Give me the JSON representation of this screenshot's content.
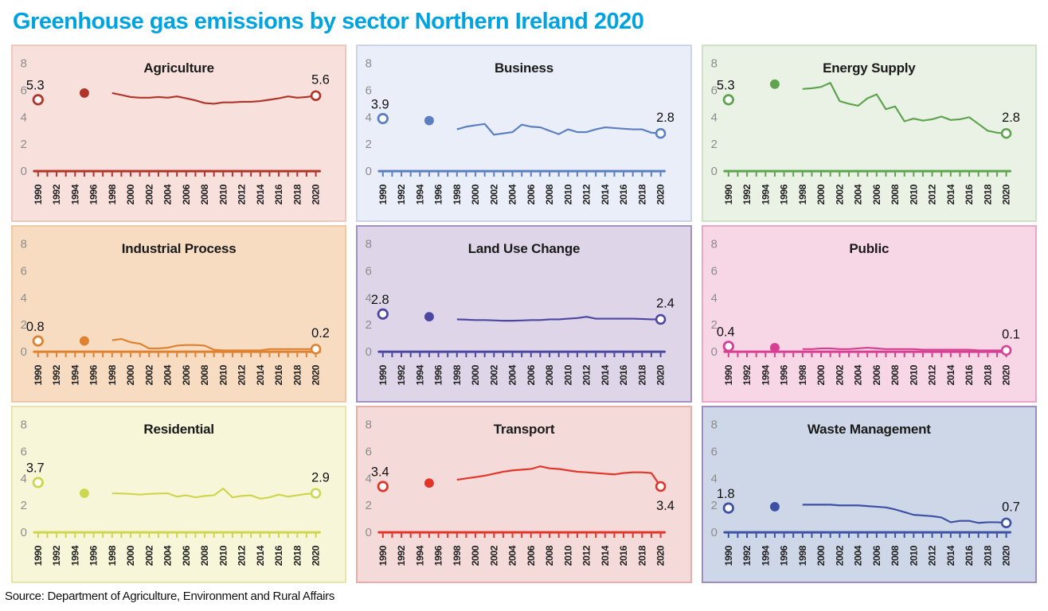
{
  "header": {
    "title": "Greenhouse gas emissions by sector Northern Ireland 2020",
    "title_color": "#00a3e0"
  },
  "footer": {
    "source": "Source: Department of Agriculture, Environment and Rural Affairs"
  },
  "axis": {
    "year_start": 1990,
    "year_end": 2020,
    "year_label_step": 2,
    "ylim": [
      0,
      8
    ],
    "yticks": [
      0,
      2,
      4,
      6,
      8
    ],
    "ytick_color": "#8c8c8c",
    "year_label_color": "#1f1f1f",
    "value_label_color": "#111111",
    "line_start_year": 1998
  },
  "chart_data": [
    {
      "type": "line",
      "title": "Agriculture",
      "colors": {
        "background": "#f8e0dd",
        "border": "#eec7c3",
        "accent": "#b13428"
      },
      "points": {
        "start": {
          "year": 1990,
          "value": 5.3,
          "label": "5.3",
          "marker": "open-circle"
        },
        "mid": {
          "year": 1995,
          "value": 5.8,
          "marker": "filled-circle"
        },
        "end": {
          "year": 2020,
          "value": 5.6,
          "label": "5.6",
          "marker": "open-circle",
          "label_position": "above"
        }
      },
      "line": {
        "start_year": 1998,
        "values": [
          5.8,
          5.65,
          5.5,
          5.45,
          5.45,
          5.5,
          5.45,
          5.55,
          5.4,
          5.25,
          5.05,
          5.0,
          5.1,
          5.1,
          5.15,
          5.15,
          5.2,
          5.3,
          5.4,
          5.55,
          5.45,
          5.5,
          5.6
        ]
      }
    },
    {
      "type": "line",
      "title": "Business",
      "colors": {
        "background": "#e9eef8",
        "border": "#ccd4e8",
        "accent": "#5b7ec1"
      },
      "points": {
        "start": {
          "year": 1990,
          "value": 3.9,
          "label": "3.9",
          "marker": "open-circle"
        },
        "mid": {
          "year": 1995,
          "value": 3.75,
          "marker": "filled-circle"
        },
        "end": {
          "year": 2020,
          "value": 2.8,
          "label": "2.8",
          "marker": "open-circle",
          "label_position": "above"
        }
      },
      "line": {
        "start_year": 1998,
        "values": [
          3.1,
          3.3,
          3.4,
          3.5,
          2.7,
          2.8,
          2.9,
          3.45,
          3.3,
          3.25,
          3.0,
          2.75,
          3.1,
          2.9,
          2.9,
          3.1,
          3.25,
          3.2,
          3.15,
          3.1,
          3.1,
          2.85,
          2.8
        ]
      }
    },
    {
      "type": "line",
      "title": "Energy Supply",
      "colors": {
        "background": "#eaf1e5",
        "border": "#cfe0c8",
        "accent": "#5ea34e"
      },
      "points": {
        "start": {
          "year": 1990,
          "value": 5.3,
          "label": "5.3",
          "marker": "open-circle"
        },
        "mid": {
          "year": 1995,
          "value": 6.45,
          "marker": "filled-circle"
        },
        "end": {
          "year": 2020,
          "value": 2.8,
          "label": "2.8",
          "marker": "open-circle",
          "label_position": "above"
        }
      },
      "line": {
        "start_year": 1998,
        "values": [
          6.1,
          6.15,
          6.25,
          6.55,
          5.2,
          5.0,
          4.85,
          5.4,
          5.7,
          4.6,
          4.8,
          3.7,
          3.9,
          3.75,
          3.85,
          4.05,
          3.8,
          3.85,
          4.0,
          3.5,
          3.0,
          2.85,
          2.8
        ]
      }
    },
    {
      "type": "line",
      "title": "Industrial Process",
      "colors": {
        "background": "#f7dcc2",
        "border": "#eec9a4",
        "accent": "#e0812f"
      },
      "points": {
        "start": {
          "year": 1990,
          "value": 0.8,
          "label": "0.8",
          "marker": "open-circle"
        },
        "mid": {
          "year": 1995,
          "value": 0.8,
          "marker": "filled-circle"
        },
        "end": {
          "year": 2020,
          "value": 0.2,
          "label": "0.2",
          "marker": "open-circle",
          "label_position": "above"
        }
      },
      "line": {
        "start_year": 1998,
        "values": [
          0.85,
          0.95,
          0.7,
          0.6,
          0.25,
          0.25,
          0.3,
          0.45,
          0.5,
          0.5,
          0.45,
          0.15,
          0.1,
          0.1,
          0.1,
          0.1,
          0.1,
          0.2,
          0.2,
          0.2,
          0.2,
          0.2,
          0.2
        ]
      }
    },
    {
      "type": "line",
      "title": "Land Use Change",
      "colors": {
        "background": "#ded5e9",
        "border": "#a191c4",
        "accent": "#4b47a1"
      },
      "points": {
        "start": {
          "year": 1990,
          "value": 2.8,
          "label": "2.8",
          "marker": "open-circle"
        },
        "mid": {
          "year": 1995,
          "value": 2.6,
          "marker": "filled-circle"
        },
        "end": {
          "year": 2020,
          "value": 2.4,
          "label": "2.4",
          "marker": "open-circle",
          "label_position": "above"
        }
      },
      "line": {
        "start_year": 1998,
        "values": [
          2.4,
          2.38,
          2.35,
          2.35,
          2.33,
          2.3,
          2.3,
          2.32,
          2.35,
          2.35,
          2.4,
          2.4,
          2.45,
          2.5,
          2.6,
          2.45,
          2.45,
          2.45,
          2.45,
          2.45,
          2.43,
          2.4,
          2.4
        ]
      }
    },
    {
      "type": "line",
      "title": "Public",
      "colors": {
        "background": "#f7d6e6",
        "border": "#e9a6c6",
        "accent": "#d63f92"
      },
      "points": {
        "start": {
          "year": 1990,
          "value": 0.4,
          "label": "0.4",
          "marker": "open-circle"
        },
        "mid": {
          "year": 1995,
          "value": 0.3,
          "marker": "filled-circle"
        },
        "end": {
          "year": 2020,
          "value": 0.1,
          "label": "0.1",
          "marker": "open-circle",
          "label_position": "above"
        }
      },
      "line": {
        "start_year": 1998,
        "values": [
          0.2,
          0.2,
          0.25,
          0.25,
          0.2,
          0.2,
          0.25,
          0.3,
          0.25,
          0.2,
          0.2,
          0.2,
          0.2,
          0.15,
          0.15,
          0.15,
          0.15,
          0.15,
          0.15,
          0.1,
          0.1,
          0.1,
          0.1
        ]
      }
    },
    {
      "type": "line",
      "title": "Residential",
      "colors": {
        "background": "#f8f6d8",
        "border": "#e8e4ae",
        "accent": "#ccd64e"
      },
      "points": {
        "start": {
          "year": 1990,
          "value": 3.7,
          "label": "3.7",
          "marker": "open-circle"
        },
        "mid": {
          "year": 1995,
          "value": 2.9,
          "marker": "filled-circle"
        },
        "end": {
          "year": 2020,
          "value": 2.9,
          "label": "2.9",
          "marker": "open-circle",
          "label_position": "above"
        }
      },
      "line": {
        "start_year": 1998,
        "values": [
          2.9,
          2.88,
          2.85,
          2.8,
          2.85,
          2.88,
          2.9,
          2.65,
          2.75,
          2.6,
          2.7,
          2.75,
          3.25,
          2.6,
          2.7,
          2.75,
          2.5,
          2.6,
          2.8,
          2.65,
          2.75,
          2.85,
          2.9
        ]
      }
    },
    {
      "type": "line",
      "title": "Transport",
      "colors": {
        "background": "#f4dad8",
        "border": "#e5aeaa",
        "accent": "#e1352a"
      },
      "points": {
        "start": {
          "year": 1990,
          "value": 3.4,
          "label": "3.4",
          "marker": "open-circle"
        },
        "mid": {
          "year": 1995,
          "value": 3.65,
          "marker": "filled-circle"
        },
        "end": {
          "year": 2020,
          "value": 3.4,
          "label": "3.4",
          "marker": "open-circle",
          "label_position": "below"
        }
      },
      "line": {
        "start_year": 1998,
        "values": [
          3.9,
          4.0,
          4.1,
          4.2,
          4.35,
          4.5,
          4.6,
          4.65,
          4.7,
          4.9,
          4.75,
          4.7,
          4.6,
          4.5,
          4.45,
          4.4,
          4.35,
          4.3,
          4.4,
          4.45,
          4.45,
          4.4,
          3.4
        ]
      }
    },
    {
      "type": "line",
      "title": "Waste Management",
      "colors": {
        "background": "#cdd7e7",
        "border": "#9c8dc1",
        "accent": "#3d51a4"
      },
      "points": {
        "start": {
          "year": 1990,
          "value": 1.8,
          "label": "1.8",
          "marker": "open-circle"
        },
        "mid": {
          "year": 1995,
          "value": 1.9,
          "marker": "filled-circle"
        },
        "end": {
          "year": 2020,
          "value": 0.7,
          "label": "0.7",
          "marker": "open-circle",
          "label_position": "above"
        }
      },
      "line": {
        "start_year": 1998,
        "values": [
          2.05,
          2.05,
          2.05,
          2.05,
          2.0,
          2.0,
          2.0,
          1.95,
          1.9,
          1.85,
          1.7,
          1.5,
          1.3,
          1.25,
          1.2,
          1.1,
          0.75,
          0.85,
          0.85,
          0.7,
          0.75,
          0.75,
          0.7
        ]
      }
    }
  ]
}
